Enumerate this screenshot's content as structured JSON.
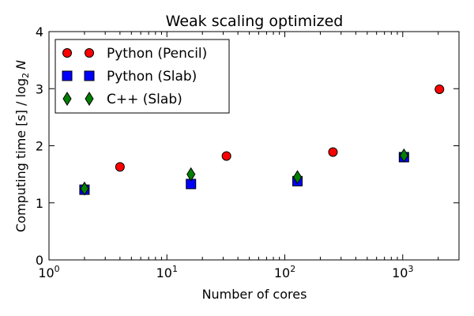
{
  "chart_data": {
    "type": "scatter",
    "title": "Weak scaling optimized",
    "xlabel": "Number of cores",
    "ylabel": "Computing time [s] / log",
    "ylabel_sub": "2",
    "ylabel_var": "N",
    "xscale": "log",
    "xlim": [
      1,
      3000
    ],
    "ylim": [
      0,
      4
    ],
    "x_ticks": [
      {
        "value": 1,
        "base": "10",
        "exp": "0"
      },
      {
        "value": 10,
        "base": "10",
        "exp": "1"
      },
      {
        "value": 100,
        "base": "10",
        "exp": "2"
      },
      {
        "value": 1000,
        "base": "10",
        "exp": "3"
      }
    ],
    "y_ticks": [
      "0",
      "1",
      "2",
      "3",
      "4"
    ],
    "grid": false,
    "legend_position": "top-left",
    "series": [
      {
        "name": "Python (Pencil)",
        "marker": "circle",
        "color": "#ff0000",
        "x": [
          4,
          32,
          256,
          2048
        ],
        "y": [
          1.63,
          1.82,
          1.89,
          2.99
        ]
      },
      {
        "name": "Python (Slab)",
        "marker": "square",
        "color": "#0000ff",
        "x": [
          2,
          16,
          128,
          1024
        ],
        "y": [
          1.23,
          1.33,
          1.38,
          1.8
        ]
      },
      {
        "name": "C++ (Slab)",
        "marker": "diamond",
        "color": "#008000",
        "x": [
          2,
          16,
          128,
          1024
        ],
        "y": [
          1.25,
          1.5,
          1.45,
          1.83
        ]
      }
    ]
  }
}
